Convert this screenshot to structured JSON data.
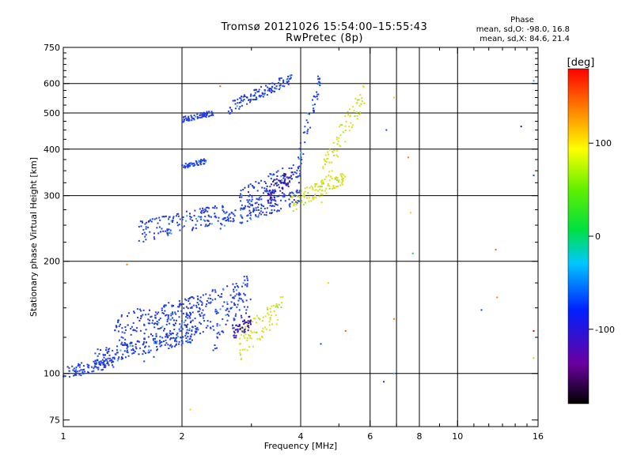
{
  "header": {
    "title_line1": "Tromsø 20121026 15:54:00–15:55:43",
    "title_line2": "RwPretec (8p)"
  },
  "stats": {
    "heading": "Phase",
    "line_o": "mean, sd,O: -98.0, 16.8",
    "line_x": "mean, sd,X: 84.6, 21.4"
  },
  "chart_data": {
    "type": "scatter",
    "xlabel": "Frequency [MHz]",
    "ylabel": "Stationary phase Virtual Height [km]",
    "xscale": "log",
    "yscale": "log",
    "xlim": [
      1,
      16
    ],
    "ylim": [
      72,
      750
    ],
    "x_ticks": [
      1,
      2,
      4,
      6,
      8,
      10,
      16
    ],
    "y_ticks": [
      75,
      100,
      200,
      300,
      400,
      500,
      600,
      750
    ],
    "x_gridlines": [
      2,
      4,
      6,
      7,
      8,
      10
    ],
    "y_gridlines": [
      100,
      200,
      300,
      400,
      500,
      600
    ],
    "colorbar": {
      "label": "[deg]",
      "range": [
        -180,
        180
      ],
      "ticks": [
        100,
        0,
        -100
      ]
    },
    "series": [
      {
        "mode": "O",
        "color": "#1f3ee8",
        "traces": [
          {
            "fmin": 1.0,
            "fmax": 1.35,
            "h0": 100,
            "h1": 108,
            "hjit": 4
          },
          {
            "fmin": 1.2,
            "fmax": 2.2,
            "h0": 110,
            "h1": 128,
            "hjit": 6
          },
          {
            "fmin": 1.35,
            "fmax": 2.3,
            "h0": 130,
            "h1": 150,
            "hjit": 14
          },
          {
            "fmin": 1.6,
            "fmax": 2.8,
            "h0": 125,
            "h1": 160,
            "hjit": 18
          },
          {
            "fmin": 2.4,
            "fmax": 3.0,
            "h0": 130,
            "h1": 170,
            "hjit": 20
          },
          {
            "fmin": 1.55,
            "fmax": 2.6,
            "h0": 240,
            "h1": 270,
            "hjit": 16
          },
          {
            "fmin": 2.5,
            "fmax": 4.0,
            "h0": 252,
            "h1": 300,
            "hjit": 14
          },
          {
            "fmin": 2.8,
            "fmax": 3.9,
            "h0": 290,
            "h1": 350,
            "hjit": 22
          },
          {
            "fmin": 3.9,
            "fmax": 4.5,
            "h0": 330,
            "h1": 620,
            "hjit": 40
          },
          {
            "fmin": 2.6,
            "fmax": 3.8,
            "h0": 510,
            "h1": 620,
            "hjit": 20
          },
          {
            "fmin": 2.0,
            "fmax": 2.4,
            "h0": 480,
            "h1": 500,
            "hjit": 8
          },
          {
            "fmin": 2.0,
            "fmax": 2.3,
            "h0": 360,
            "h1": 372,
            "hjit": 6
          }
        ]
      },
      {
        "mode": "X",
        "color": "#d8e020",
        "traces": [
          {
            "fmin": 2.8,
            "fmax": 3.6,
            "h0": 120,
            "h1": 150,
            "hjit": 12
          },
          {
            "fmin": 3.8,
            "fmax": 5.2,
            "h0": 285,
            "h1": 340,
            "hjit": 16
          },
          {
            "fmin": 4.5,
            "fmax": 5.8,
            "h0": 320,
            "h1": 560,
            "hjit": 40
          }
        ]
      },
      {
        "mode": "F1-cusp",
        "color": "#3a1aa0",
        "traces": [
          {
            "fmin": 3.3,
            "fmax": 3.8,
            "h0": 300,
            "h1": 340,
            "hjit": 20
          },
          {
            "fmin": 2.7,
            "fmax": 3.0,
            "h0": 128,
            "h1": 138,
            "hjit": 6
          }
        ]
      }
    ],
    "scattered_points": [
      {
        "f": 6.5,
        "h": 95,
        "c": "#2030c0"
      },
      {
        "f": 6.9,
        "h": 100,
        "c": "#30a0ff"
      },
      {
        "f": 6.6,
        "h": 450,
        "c": "#2040d0"
      },
      {
        "f": 6.9,
        "h": 550,
        "c": "#ffd000"
      },
      {
        "f": 7.5,
        "h": 380,
        "c": "#ff8000"
      },
      {
        "f": 7.6,
        "h": 270,
        "c": "#ffd000"
      },
      {
        "f": 7.7,
        "h": 210,
        "c": "#30c040"
      },
      {
        "f": 12.5,
        "h": 215,
        "c": "#ff6000"
      },
      {
        "f": 14.5,
        "h": 460,
        "c": "#202090"
      },
      {
        "f": 15.6,
        "h": 610,
        "c": "#30a0ff"
      },
      {
        "f": 15.6,
        "h": 340,
        "c": "#2040d0"
      },
      {
        "f": 15.6,
        "h": 130,
        "c": "#d00000"
      },
      {
        "f": 15.6,
        "h": 110,
        "c": "#b0e020"
      },
      {
        "f": 11.5,
        "h": 148,
        "c": "#2040d0"
      },
      {
        "f": 12.6,
        "h": 160,
        "c": "#ff8000"
      },
      {
        "f": 4.5,
        "h": 120,
        "c": "#2040d0"
      },
      {
        "f": 4.7,
        "h": 175,
        "c": "#ffd000"
      },
      {
        "f": 5.2,
        "h": 130,
        "c": "#ff6000"
      },
      {
        "f": 2.1,
        "h": 80,
        "c": "#ffd000"
      },
      {
        "f": 1.45,
        "h": 196,
        "c": "#ff8000"
      },
      {
        "f": 2.5,
        "h": 590,
        "c": "#ff6000"
      },
      {
        "f": 6.9,
        "h": 140,
        "c": "#ff8000"
      }
    ]
  }
}
